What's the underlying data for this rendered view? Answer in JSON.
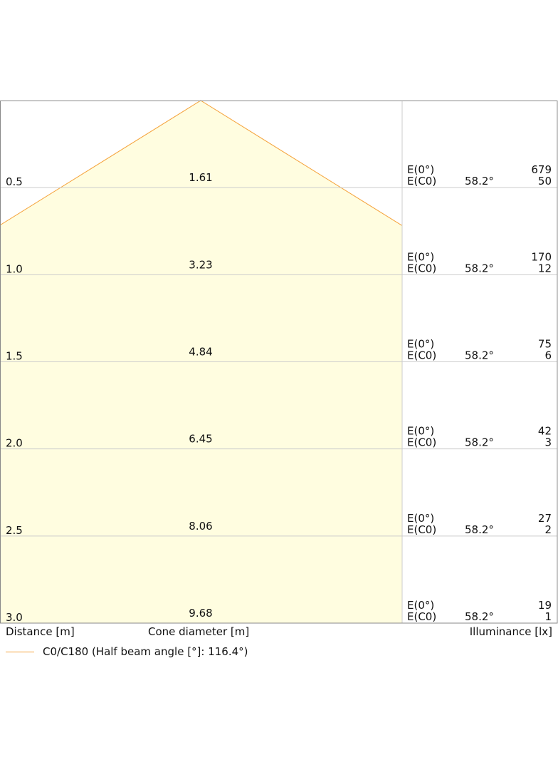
{
  "chart_data": {
    "type": "beam-cone",
    "distance_label": "Distance [m]",
    "cone_label": "Cone diameter [m]",
    "illuminance_label": "Illuminance [lx]",
    "legend": "C0/C180 (Half beam angle [°]: 116.4°)",
    "half_beam_angle_deg": 116.4,
    "colors": {
      "cone_fill": "#fffde0",
      "cone_edge": "#f5a33c",
      "grid": "#cccccc",
      "frame": "#888888"
    },
    "rows": [
      {
        "distance": "0.5",
        "diameter": "1.61",
        "e0_label": "E(0°)",
        "e0": "679",
        "ec0_label": "E(C0)",
        "angle": "58.2°",
        "ec0": "50"
      },
      {
        "distance": "1.0",
        "diameter": "3.23",
        "e0_label": "E(0°)",
        "e0": "170",
        "ec0_label": "E(C0)",
        "angle": "58.2°",
        "ec0": "12"
      },
      {
        "distance": "1.5",
        "diameter": "4.84",
        "e0_label": "E(0°)",
        "e0": "75",
        "ec0_label": "E(C0)",
        "angle": "58.2°",
        "ec0": "6"
      },
      {
        "distance": "2.0",
        "diameter": "6.45",
        "e0_label": "E(0°)",
        "e0": "42",
        "ec0_label": "E(C0)",
        "angle": "58.2°",
        "ec0": "3"
      },
      {
        "distance": "2.5",
        "diameter": "8.06",
        "e0_label": "E(0°)",
        "e0": "27",
        "ec0_label": "E(C0)",
        "angle": "58.2°",
        "ec0": "2"
      },
      {
        "distance": "3.0",
        "diameter": "9.68",
        "e0_label": "E(0°)",
        "e0": "19",
        "ec0_label": "E(C0)",
        "angle": "58.2°",
        "ec0": "1"
      }
    ]
  }
}
